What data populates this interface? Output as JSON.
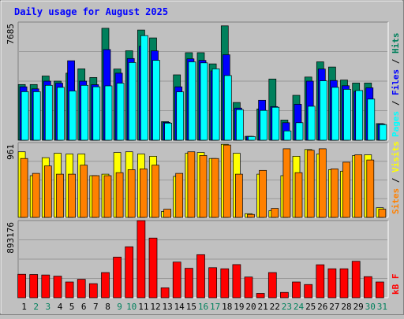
{
  "chart_data": {
    "type": "bar",
    "title": "Daily usage for August 2025",
    "categories": [
      "1",
      "2",
      "3",
      "4",
      "5",
      "6",
      "7",
      "8",
      "9",
      "10",
      "11",
      "12",
      "13",
      "14",
      "15",
      "16",
      "17",
      "18",
      "19",
      "20",
      "21",
      "22",
      "23",
      "24",
      "25",
      "26",
      "27",
      "28",
      "29",
      "30",
      "31"
    ],
    "weekend_days": [
      "2",
      "3",
      "9",
      "10",
      "16",
      "17",
      "23",
      "24",
      "30",
      "31"
    ],
    "panels": [
      {
        "id": "hits_files_pages",
        "ymax_label": "7685",
        "ymax": 7685,
        "right_labels": [
          "Pages",
          "Files",
          "Hits"
        ],
        "series": [
          {
            "name": "Hits",
            "color": "#00805c",
            "values": [
              3720,
              3720,
              4290,
              3950,
              4480,
              4770,
              4190,
              7480,
              4760,
              5980,
              7365,
              6840,
              1240,
              4370,
              5850,
              5850,
              5100,
              7645,
              2520,
              260,
              2090,
              4090,
              1350,
              3000,
              4220,
              5240,
              4890,
              4020,
              3820,
              3820,
              1110
            ]
          },
          {
            "name": "Files",
            "color": "#0000ff",
            "values": [
              3570,
              3430,
              3950,
              3810,
              5310,
              3950,
              3710,
              6060,
              4480,
              5460,
              6280,
              5970,
              1190,
              3570,
              5440,
              5330,
              4630,
              5710,
              2150,
              260,
              2670,
              2250,
              1170,
              2400,
              3950,
              4760,
              3990,
              3640,
              3260,
              3500,
              1080
            ]
          },
          {
            "name": "Pages",
            "color": "#00ffff",
            "values": [
              3240,
              3240,
              3670,
              3530,
              3290,
              3670,
              3570,
              3630,
              3810,
              5190,
              6990,
              5340,
              1140,
              3230,
              5240,
              5170,
              4770,
              4320,
              2040,
              240,
              1990,
              2200,
              620,
              1170,
              2270,
              3970,
              3530,
              3400,
              3320,
              2750,
              1040
            ]
          }
        ]
      },
      {
        "id": "visits_sites",
        "ymax_label": "961",
        "ymax": 961,
        "right_labels": [
          "Sites",
          "Visits"
        ],
        "series": [
          {
            "name": "Visits",
            "color": "#ffff00",
            "values": [
              880,
              560,
              800,
              860,
              850,
              850,
              560,
              580,
              870,
              880,
              850,
              820,
              80,
              550,
              860,
              870,
              790,
              980,
              860,
              50,
              580,
              90,
              560,
              820,
              910,
              850,
              640,
              620,
              830,
              840,
              130
            ]
          },
          {
            "name": "Sites",
            "color": "#ff8000",
            "values": [
              790,
              590,
              690,
              580,
              580,
              700,
              560,
              560,
              600,
              640,
              650,
              700,
              110,
              590,
              880,
              830,
              790,
              970,
              580,
              40,
              630,
              120,
              920,
              600,
              900,
              920,
              650,
              740,
              840,
              770,
              110
            ]
          }
        ]
      },
      {
        "id": "kbytes",
        "ymax_label": "893176",
        "ymax": 893176,
        "right_labels": [
          "kB F"
        ],
        "series": [
          {
            "name": "kB F",
            "color": "#ff0000",
            "values": [
              283000,
              280000,
              275000,
              260000,
              190000,
              222000,
              170000,
              304000,
              490000,
              615000,
              930000,
              720000,
              120000,
              430000,
              355000,
              520000,
              363000,
              350000,
              400000,
              250000,
              52000,
              304000,
              65000,
              190000,
              160000,
              398000,
              350000,
              350000,
              440000,
              255000,
              190000
            ]
          }
        ]
      }
    ],
    "colors": {
      "title": "#0000ff",
      "background": "#c0c0c0",
      "plot_bg": "#c0c0c0",
      "gridline": "#999999",
      "weekday_label": "#000000",
      "weekend_label": "#00805c",
      "label_hits": "#00805c",
      "label_files": "#0000ff",
      "label_pages": "#00ffff",
      "label_visits": "#ffff00",
      "label_sites": "#ff8000",
      "label_kb": "#ff0000"
    },
    "grid": true
  }
}
